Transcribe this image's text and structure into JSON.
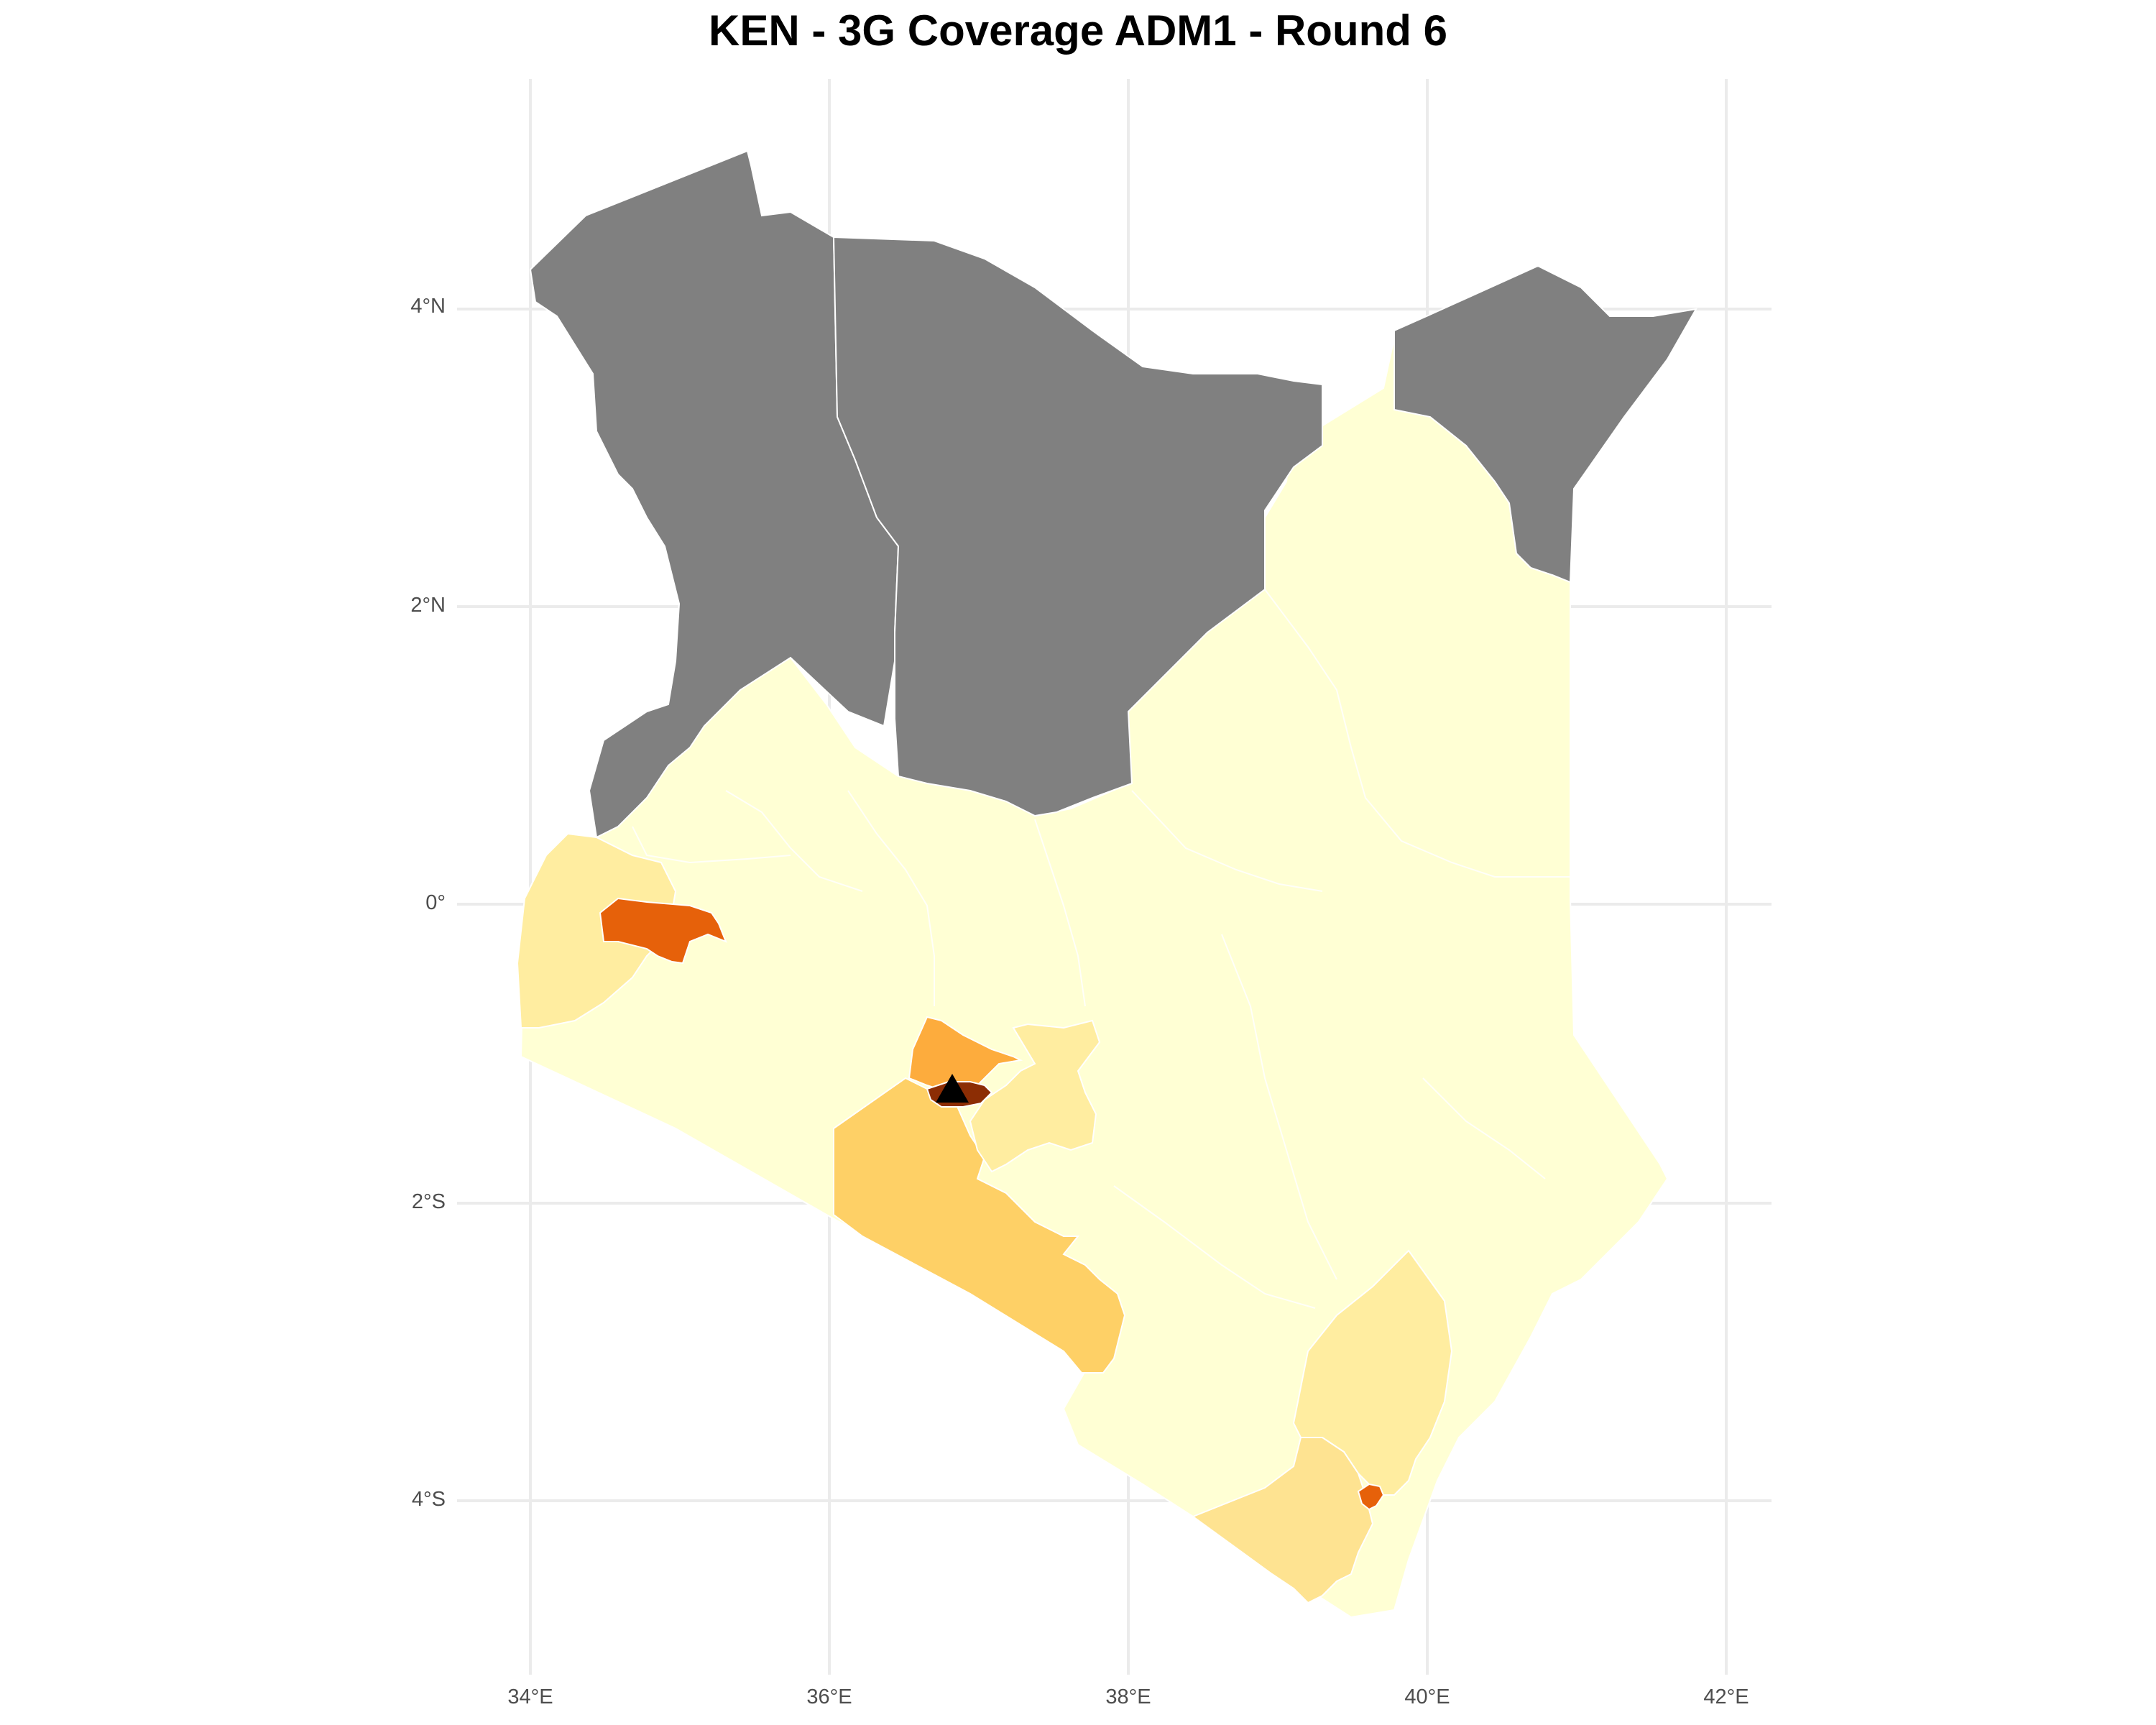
{
  "title": "KEN - 3G Coverage ADM1 - Round 6",
  "axes": {
    "y_ticks": [
      "4°N",
      "2°N",
      "0°",
      "2°S",
      "4°S"
    ],
    "x_ticks": [
      "34°E",
      "36°E",
      "38°E",
      "40°E",
      "42°E"
    ],
    "lon_range": [
      34,
      42
    ],
    "lat_range": [
      -4.6,
      5
    ]
  },
  "grid": true,
  "colors": {
    "no_data": "#808080",
    "lowest": "#ffffd4",
    "low": "#ffeda0",
    "low_mid": "#fee391",
    "mid": "#fed066",
    "mid_high": "#fdac3d",
    "high": "#e6610a",
    "very_high": "#8c2d04",
    "marker": "#000000",
    "border": "#ffffff",
    "grid": "#ebebeb"
  },
  "regions": [
    {
      "name": "northwest",
      "fill": "no_data"
    },
    {
      "name": "north",
      "fill": "no_data"
    },
    {
      "name": "northeast",
      "fill": "no_data"
    },
    {
      "name": "rest",
      "fill": "lowest"
    },
    {
      "name": "western",
      "fill": "low"
    },
    {
      "name": "western-hotspot",
      "fill": "high"
    },
    {
      "name": "kajiado",
      "fill": "mid"
    },
    {
      "name": "kiambu",
      "fill": "mid_high"
    },
    {
      "name": "nairobi",
      "fill": "very_high"
    },
    {
      "name": "machakos",
      "fill": "low"
    },
    {
      "name": "kilifi",
      "fill": "low"
    },
    {
      "name": "kwale",
      "fill": "low_mid"
    },
    {
      "name": "mombasa",
      "fill": "high"
    }
  ],
  "marker": {
    "shape": "triangle",
    "lon": 36.82,
    "lat": -1.29
  }
}
